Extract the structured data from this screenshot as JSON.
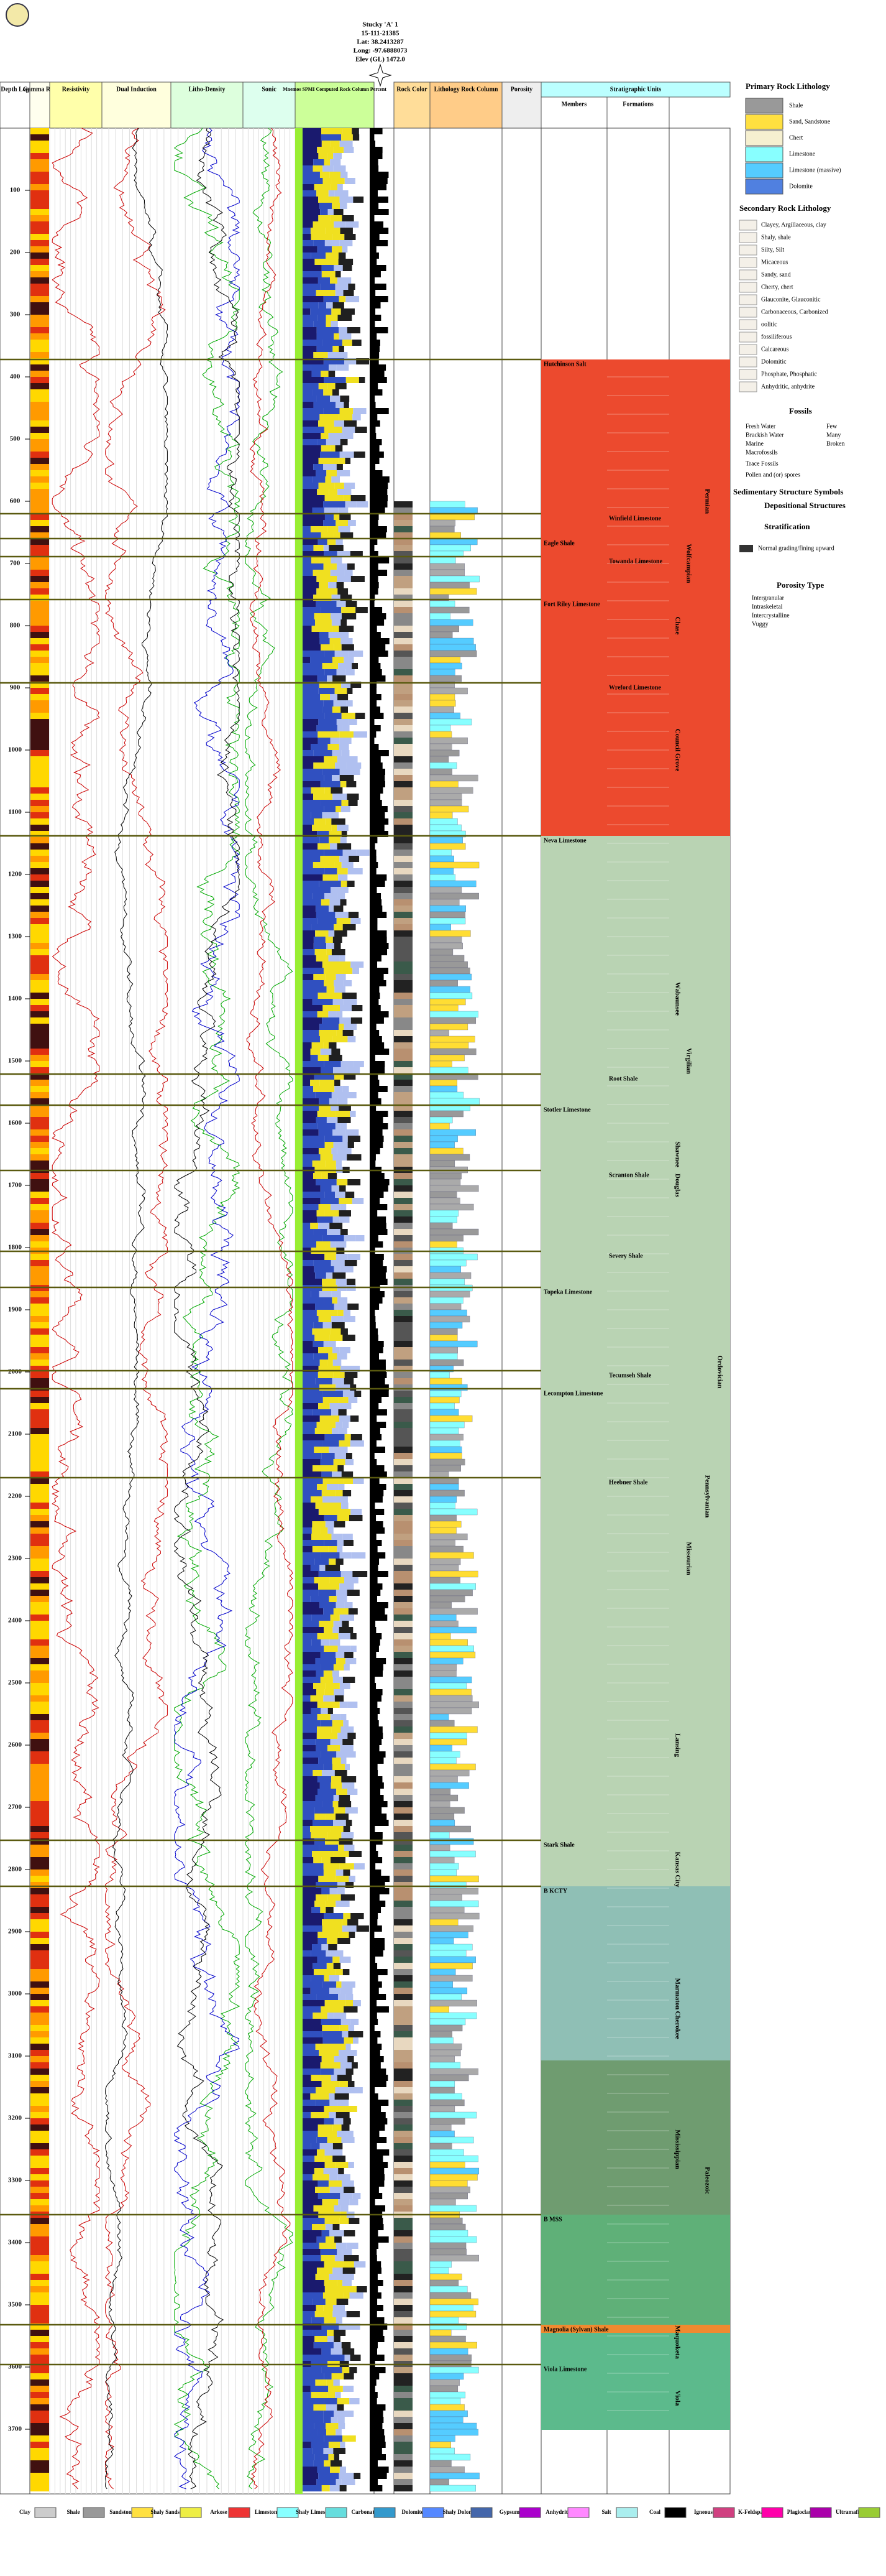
{
  "header": {
    "lines": [
      "Stucky 'A' 1",
      "15-111-21385",
      "Lat: 38.2413287",
      "Long: -97.6888073",
      "Elev (GL) 1472.0"
    ]
  },
  "columns": [
    "Depth Log",
    "Gamma Ray",
    "Resistivity",
    "Dual Induction",
    "Litho-Density",
    "Sonic",
    "Mnemos SPMI Computed Rock Column Percent",
    "Rock Color",
    "Lithology Rock Column",
    "Porosity",
    "Stratigraphic Units",
    "Members",
    "Formations"
  ],
  "depth": {
    "ticks": [
      100,
      200,
      300,
      400,
      500,
      600,
      700,
      800,
      900,
      1000,
      1100,
      1200,
      1300,
      1400,
      1500,
      1600,
      1700,
      1800,
      1900,
      2000,
      2100,
      2200,
      2300,
      2400,
      2500,
      2600,
      2700,
      2800,
      2900,
      3000,
      3100,
      3200,
      3300,
      3400,
      3500,
      3600,
      3700
    ]
  },
  "members": [
    "Hutchinson Salt",
    "Winfield Limestone",
    "Eagle Shale",
    "Towanda Limestone",
    "Fort Riley Limestone",
    "Wreford Limestone",
    "Neva Limestone",
    "Root Shale",
    "Stotler Limestone",
    "Scranton Shale",
    "Severy Shale",
    "Topeka Limestone",
    "Tecumseh Shale",
    "Lecompton Limestone",
    "Heebner Shale",
    "Stark Shale",
    "B KCTY",
    "B MSS",
    "Magnolia (Sylvan) Shale",
    "Viola Limestone"
  ],
  "formations": [
    "Chase",
    "Council Grove",
    "Wabaunsee",
    "Shawnee",
    "Douglas",
    "Lansing",
    "Kansas City",
    "Marmaton",
    "Cherokee",
    "Mississippian",
    "Maquoketa",
    "Viola"
  ],
  "groups": [
    "Wolfcampian",
    "Virgilian",
    "Missourian",
    "Permian",
    "Pennsylvanian",
    "Paleozoic",
    "Ordovician"
  ],
  "legend": {
    "primary_title": "Primary Rock Lithology",
    "primary": [
      "Shale",
      "Sand, Sandstone",
      "Chert",
      "Limestone",
      "Limestone (massive)",
      "Dolomite"
    ],
    "secondary_title": "Secondary Rock Lithology",
    "secondary": [
      "Clayey, Argillaceous, clay",
      "Shaly, shale",
      "Silty, Silt",
      "Micaceous",
      "Sandy, sand",
      "Cherty, chert",
      "Glauconite, Glauconitic",
      "Carbonaceous, Carbonized",
      "oolitic",
      "fossiliferous",
      "Calcareous",
      "Dolomitic",
      "Phosphate, Phosphatic",
      "Anhydritic, anhydrite"
    ],
    "fossils_title": "Fossils",
    "fossils": [
      "Fresh Water",
      "Brackish Water",
      "Marine",
      "Macrofossils",
      "Trace Fossils",
      "Pollen and (or) spores"
    ],
    "fossil_sizes": [
      "Few",
      "Many",
      "Broken"
    ],
    "sed_title": "Sedimentary Structure Symbols",
    "sed_sub": [
      "Depositional Structures",
      "Stratification"
    ],
    "sed_item": "Normal grading/fining upward",
    "porosity_title": "Porosity Type",
    "porosity": [
      "Intergranular",
      "Intraskeletal",
      "Intercrystalline",
      "Vuggy"
    ]
  },
  "bottom_legend": [
    "Clay",
    "Shale",
    "Sandstone",
    "Shaly Sandstone",
    "Arkose",
    "Limestone",
    "Shaly Limestone",
    "Carbonate",
    "Dolomite",
    "Shaly Dolomite",
    "Gypsum",
    "Anhydrite",
    "Salt",
    "Coal",
    "Igneous",
    "K-Feldspar",
    "Plagioclase",
    "Ultramafic"
  ]
}
